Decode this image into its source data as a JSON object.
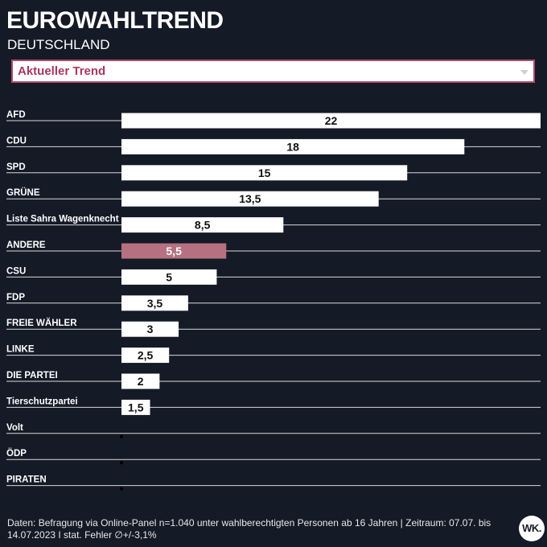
{
  "header": {
    "title": "EUROWAHLTREND",
    "subtitle": "DEUTSCHLAND"
  },
  "dropdown": {
    "selected": "Aktueller Trend"
  },
  "footer": {
    "source": "Daten: Befragung via Online-Panel n=1.040 unter wahlberechtigten Personen ab 16 Jahren | Zeitraum: 07.07. bis 14.07.2023 I stat. Fehler ∅+/-3,1%"
  },
  "logo": {
    "text": "WK."
  },
  "colors": {
    "background": "#151a27",
    "bar": "#ffffff",
    "highlight_bar": "#b5717f",
    "accent": "#a8385e"
  },
  "chart_data": {
    "type": "bar",
    "orientation": "horizontal",
    "categories": [
      "AFD",
      "CDU",
      "SPD",
      "GRÜNE",
      "Liste Sahra Wagenknecht",
      "ANDERE",
      "CSU",
      "FDP",
      "FREIE WÄHLER",
      "LINKE",
      "DIE PARTEI",
      "Tierschutzpartei",
      "Volt",
      "ÖDP",
      "PIRATEN"
    ],
    "values": [
      22,
      18,
      15,
      13.5,
      8.5,
      5.5,
      5,
      3.5,
      3,
      2.5,
      2,
      1.5,
      0,
      0,
      0
    ],
    "value_labels": [
      "22",
      "18",
      "15",
      "13,5",
      "8,5",
      "5,5",
      "5",
      "3,5",
      "3",
      "2,5",
      "2",
      "1,5",
      "",
      "",
      ""
    ],
    "highlight": [
      "ANDERE"
    ],
    "xlim": [
      0,
      22
    ],
    "grid": false,
    "legend": "none"
  }
}
